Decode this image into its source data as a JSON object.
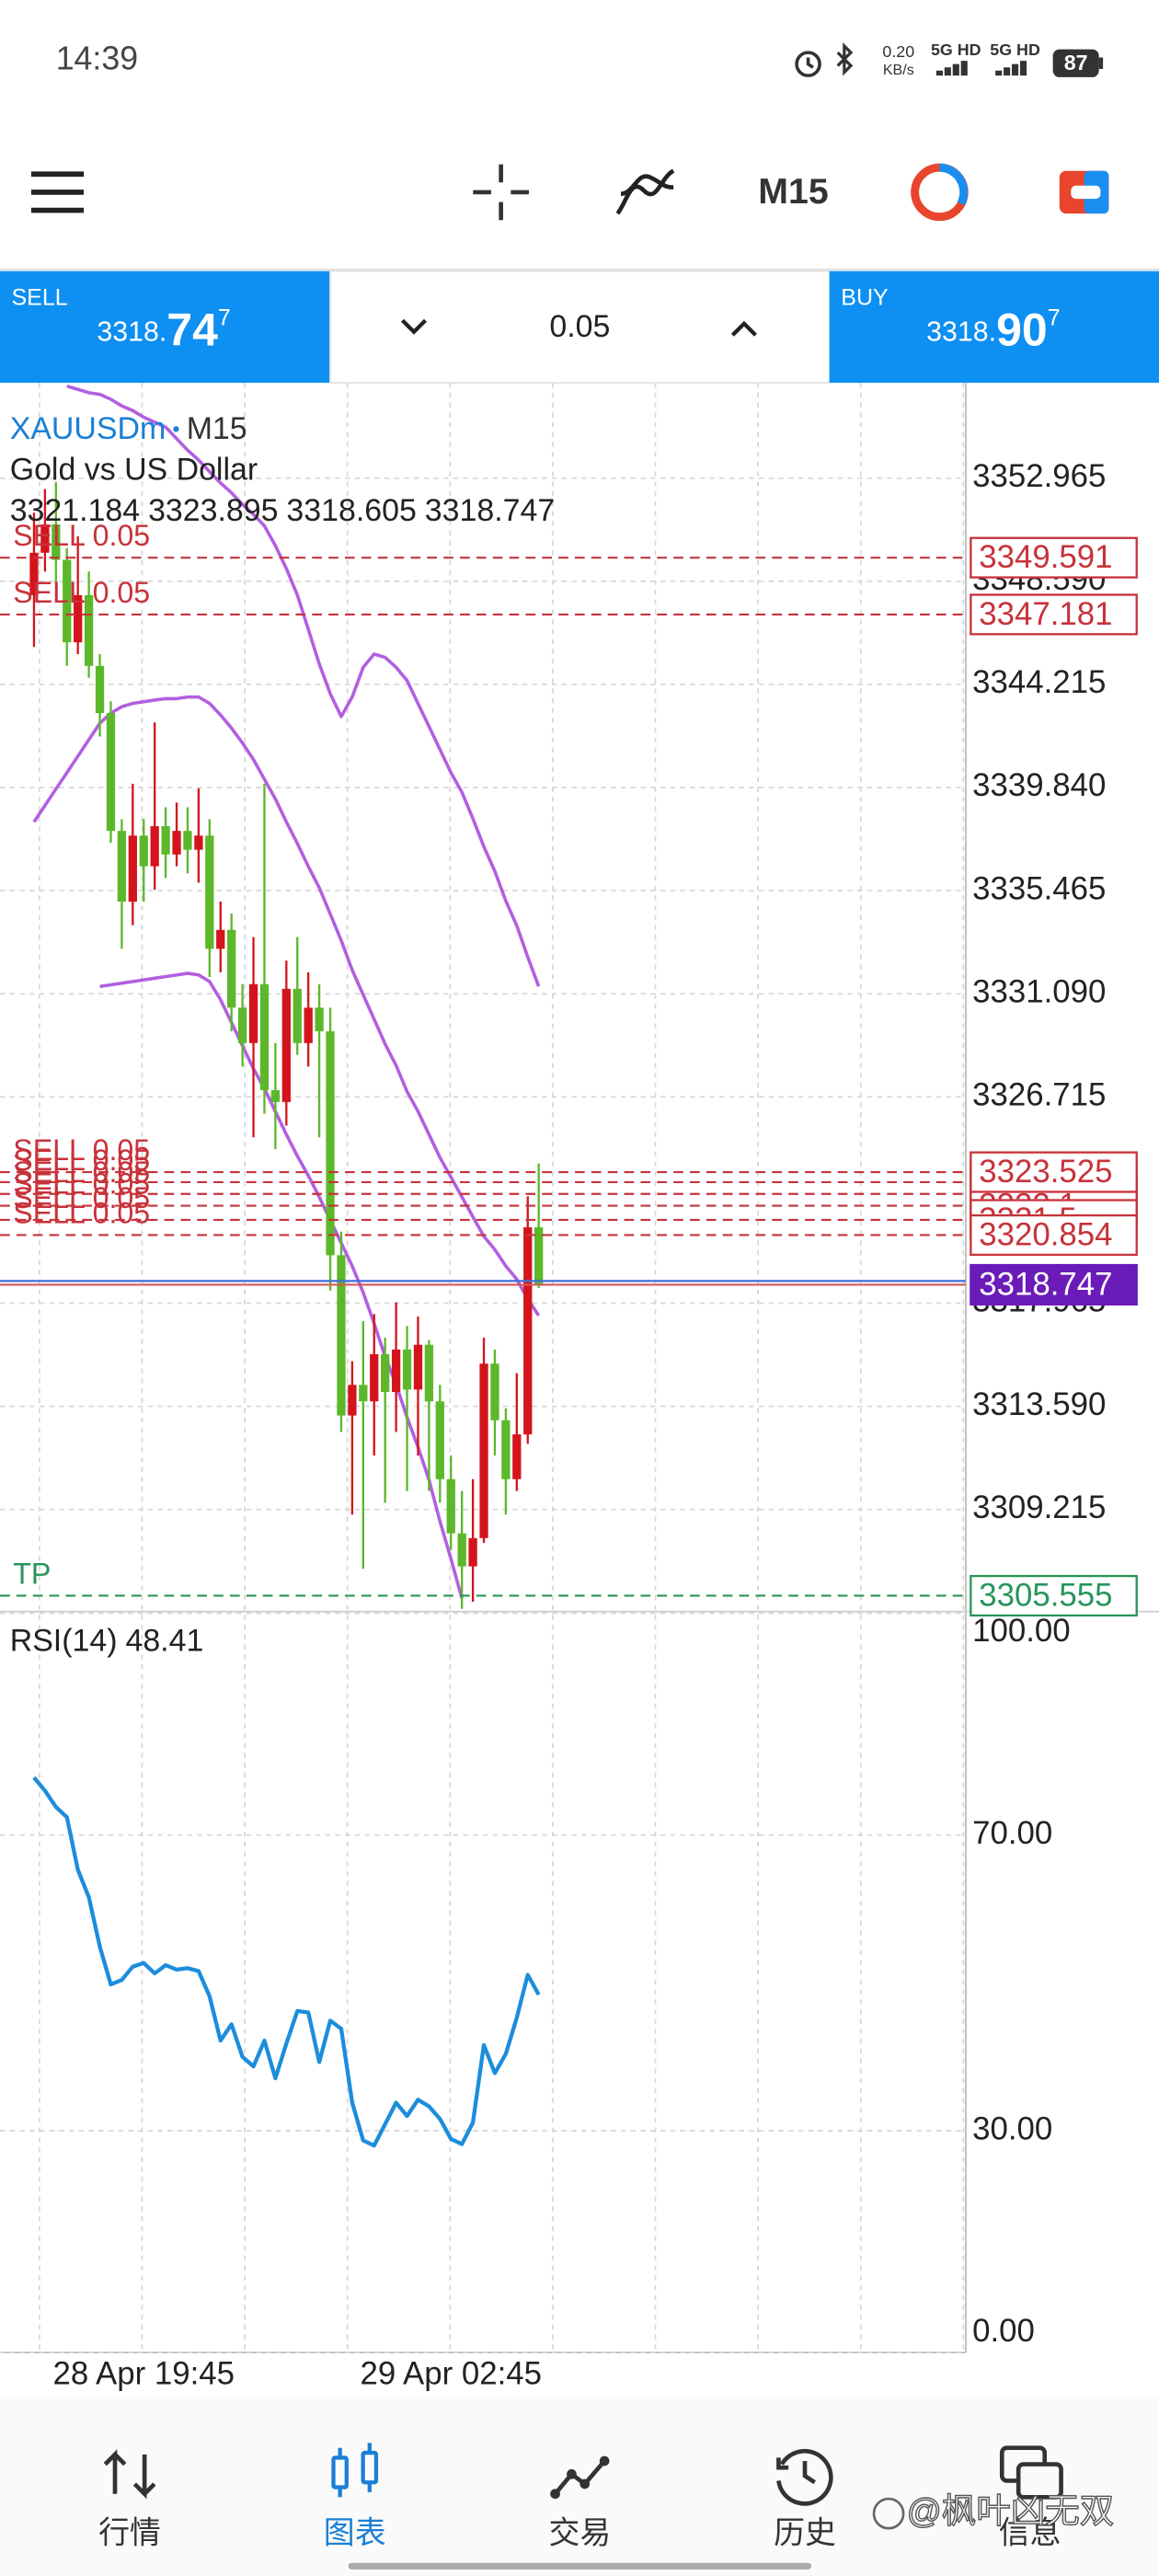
{
  "status_bar": {
    "time": "14:39",
    "net_speed": "0.20",
    "net_unit": "KB/s",
    "signal_1": "5G HD",
    "signal_2": "5G HD",
    "battery": 87
  },
  "toolbar": {
    "timeframe": "M15"
  },
  "trade_panel": {
    "sell": {
      "label": "SELL",
      "price_head": "3318.",
      "price_big": "74",
      "price_sup": "7"
    },
    "volume": "0.05",
    "buy": {
      "label": "BUY",
      "price_head": "3318.",
      "price_big": "90",
      "price_sup": "7"
    }
  },
  "chart_data": [
    {
      "type": "candlestick",
      "symbol": "XAUUSDm",
      "separator": "•",
      "timeframe": "M15",
      "description": "Gold vs US Dollar",
      "categories": [
        null,
        null,
        null,
        null,
        null,
        null,
        null,
        null,
        null,
        null,
        "28 Apr 19:45",
        null,
        null,
        null,
        null,
        null,
        null,
        null,
        null,
        null,
        null,
        null,
        null,
        null,
        null,
        null,
        null,
        null,
        null,
        null,
        null,
        null,
        null,
        null,
        null,
        null,
        null,
        null,
        "29 Apr 02:45",
        null,
        null,
        null,
        null,
        null,
        null,
        null,
        null
      ],
      "open": [
        3348,
        3349.8,
        3351,
        3349.5,
        3346,
        3348,
        3345,
        3343,
        3338,
        3335,
        3337.8,
        3336.5,
        3338.2,
        3337,
        3338,
        3337.2,
        3337.8,
        3333,
        3333.8,
        3330.5,
        3329,
        3331.5,
        3327,
        3326.5,
        3331.3,
        3329,
        3330.5,
        3329.5,
        3320,
        3313.2,
        3314.5,
        3313.8,
        3315.8,
        3314.2,
        3316,
        3314.3,
        3316.2,
        3313.8,
        3310.5,
        3308.2,
        3306.8,
        3308,
        3315.4,
        3313,
        3310.5,
        3312.4,
        3321.184
      ],
      "high": [
        3351.5,
        3352.5,
        3352.8,
        3350,
        3350.5,
        3349,
        3345.5,
        3343.5,
        3338.5,
        3340,
        3338.5,
        3342.6,
        3339,
        3339.2,
        3339,
        3339.8,
        3338.5,
        3335,
        3334.5,
        3331.5,
        3333.5,
        3340,
        3329,
        3332.5,
        3333.5,
        3332,
        3331.5,
        3330.5,
        3321,
        3315.5,
        3317.2,
        3317.5,
        3316.5,
        3318,
        3317,
        3317.4,
        3316.4,
        3314.5,
        3311.5,
        3310,
        3310.5,
        3316.5,
        3316,
        3313.5,
        3315,
        3322.5,
        3323.895
      ],
      "low": [
        3345.8,
        3349,
        3348.5,
        3345,
        3345.5,
        3344.5,
        3342,
        3337.5,
        3333,
        3334,
        3335,
        3335.5,
        3336,
        3336.5,
        3336.2,
        3335.8,
        3331.8,
        3332,
        3329.5,
        3328,
        3325,
        3326,
        3324.5,
        3325.5,
        3328.5,
        3328,
        3325,
        3318.5,
        3312.5,
        3309,
        3306.7,
        3311.5,
        3309.5,
        3312.5,
        3310,
        3311.5,
        3310,
        3309.5,
        3307.5,
        3305,
        3305.3,
        3307.8,
        3311.5,
        3309,
        3310,
        3312,
        3318.605
      ],
      "close": [
        3349.8,
        3351,
        3349.5,
        3346,
        3348,
        3345,
        3343,
        3338,
        3335,
        3337.8,
        3336.5,
        3338.2,
        3337,
        3338,
        3337.2,
        3337.8,
        3333,
        3333.8,
        3330.5,
        3329,
        3331.5,
        3327,
        3326.5,
        3331.3,
        3329,
        3330.5,
        3329.5,
        3320,
        3313.2,
        3314.5,
        3313.8,
        3315.8,
        3314.2,
        3316,
        3314.3,
        3316.2,
        3313.8,
        3310.5,
        3308.2,
        3306.8,
        3308,
        3315.4,
        3313,
        3310.5,
        3312.4,
        3321.184,
        3318.747
      ],
      "up_color": "#d4141c",
      "down_color": "#5cb82a",
      "ylim": [
        3304.88,
        3357.01
      ],
      "yticks": [
        3352.965,
        {
          "value": 3348.59,
          "label": "3348.590"
        },
        3344.215,
        {
          "value": 3339.84,
          "label": "3339.840"
        },
        3335.465,
        {
          "value": 3331.09,
          "label": "3331.090"
        },
        3326.715,
        3317.965,
        {
          "value": 3313.59,
          "label": "3313.590"
        },
        3309.215
      ],
      "grid": true,
      "indicator_lines": [
        {
          "color": "#b25fe0",
          "values": [
            null,
            null,
            null,
            3356.87,
            3356.73,
            3356.59,
            3356.52,
            3356.31,
            3356.03,
            3355.83,
            3355.55,
            3355.34,
            3355.13,
            3354.64,
            3354.15,
            3353.73,
            3353.24,
            3352.76,
            3352.34,
            3351.85,
            3351.43,
            3350.94,
            3350.1,
            3349.13,
            3348.01,
            3346.55,
            3345.08,
            3343.82,
            3342.85,
            3343.68,
            3344.94,
            3345.5,
            3345.36,
            3344.94,
            3344.38,
            3343.4,
            3342.43,
            3341.45,
            3340.47,
            3339.64,
            3338.52,
            3337.33,
            3336.29,
            3335.03,
            3333.98,
            3332.65,
            3331.4
          ]
        },
        {
          "color": "#b25fe0",
          "values": [
            3338.38,
            3339.08,
            3339.78,
            3340.47,
            3341.17,
            3341.87,
            3342.57,
            3342.99,
            3343.27,
            3343.41,
            3343.48,
            3343.55,
            3343.61,
            3343.61,
            3343.68,
            3343.68,
            3343.41,
            3342.92,
            3342.36,
            3341.73,
            3341.03,
            3340.19,
            3339.36,
            3338.38,
            3337.47,
            3336.49,
            3335.59,
            3334.47,
            3333.35,
            3332.1,
            3331.05,
            3330.01,
            3328.96,
            3328.05,
            3326.94,
            3326.1,
            3325.12,
            3324.14,
            3323.31,
            3322.47,
            3321.63,
            3320.8,
            3320.24,
            3319.54,
            3318.98,
            3318.14,
            3317.44
          ]
        },
        {
          "color": "#b25fe0",
          "values": [
            null,
            null,
            null,
            null,
            null,
            null,
            3331.4,
            3331.47,
            3331.54,
            3331.61,
            3331.68,
            3331.75,
            3331.82,
            3331.89,
            3331.96,
            3331.89,
            3331.61,
            3330.84,
            3329.87,
            3328.89,
            3327.91,
            3327.07,
            3326.1,
            3325.12,
            3324.21,
            3323.38,
            3322.47,
            3321.49,
            3320.52,
            3319.54,
            3318.42,
            3317.1,
            3315.7,
            3314.52,
            3313.12,
            3311.86,
            3310.47,
            3308.71,
            3307.12,
            3305.44,
            null,
            null,
            null,
            null,
            null,
            null,
            null
          ]
        }
      ],
      "orders": [
        {
          "label": "SELL 0.05",
          "price": 3349.591
        },
        {
          "label": "SELL 0.05",
          "price": 3347.181
        },
        {
          "label": "SELL 0.05",
          "price": 3323.1
        },
        {
          "label": "SELL 0.05",
          "price": 3322.6
        },
        {
          "label": "SELL 0.05",
          "price": 3322.1
        },
        {
          "label": "SELL 0.05",
          "price": 3321.5
        },
        {
          "label": "SELL 0.05",
          "price": 3323.525
        },
        {
          "label": "SELL 0.05",
          "price": 3320.854
        }
      ],
      "order_color": "#c8323a",
      "take_profit": {
        "label": "TP",
        "price": 3305.555,
        "color": "#27955a"
      },
      "ask": 3318.907,
      "ask_color": "#3f6fd8",
      "bid_color": "#d65a5a",
      "price_box_color": "#6a1bb8"
    },
    {
      "type": "line",
      "title": "RSI(14)",
      "color": "#1c8ddc",
      "values": [
        77.8,
        76,
        73.8,
        72.4,
        65.3,
        61.6,
        54.9,
        49.8,
        50.4,
        52.2,
        52.7,
        51.3,
        52.4,
        51.8,
        52,
        51.6,
        48.2,
        42.2,
        44.4,
        40,
        38.7,
        42.2,
        37.1,
        41.8,
        46.2,
        46,
        39.3,
        44.9,
        43.8,
        33.8,
        28.7,
        28,
        30.9,
        33.8,
        32,
        34.2,
        33.3,
        31.6,
        28.9,
        28.2,
        31.1,
        41.6,
        37.8,
        40.4,
        45.3,
        51.1,
        48.41
      ],
      "ylim": [
        0,
        100
      ],
      "yticks": [
        {
          "value": 100,
          "label": "100.00"
        },
        {
          "value": 70,
          "label": "70.00"
        },
        {
          "value": 30,
          "label": "30.00"
        },
        {
          "value": 0,
          "label": "0.00"
        }
      ],
      "grid": true
    }
  ],
  "bottom_nav": {
    "items": [
      "行情",
      "图表",
      "交易",
      "历史",
      "信息"
    ],
    "active": 1,
    "watermark": "@枫叶凶无双"
  }
}
